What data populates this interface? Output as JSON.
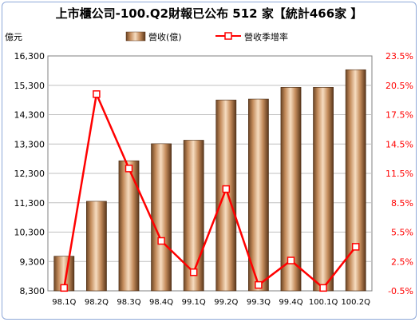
{
  "chart_data": {
    "type": "bar",
    "title": "上市櫃公司-100.Q2財報已公布 512 家【統計466家 】",
    "y_left_unit": "億元",
    "categories": [
      "98.1Q",
      "98.2Q",
      "98.3Q",
      "98.4Q",
      "99.1Q",
      "99.2Q",
      "99.3Q",
      "99.4Q",
      "100.1Q",
      "100.2Q"
    ],
    "series": [
      {
        "name": "營收(億)",
        "type": "bar",
        "axis": "left",
        "color": "#d9a77c",
        "values": [
          9480,
          11350,
          12730,
          13310,
          13430,
          14800,
          14830,
          15230,
          15230,
          15830
        ]
      },
      {
        "name": "營收季增率",
        "type": "line",
        "axis": "right",
        "color": "#ff0000",
        "values": [
          -0.2,
          19.6,
          12.0,
          4.6,
          1.4,
          9.9,
          0.1,
          2.6,
          -0.2,
          4.0
        ]
      }
    ],
    "y_left": {
      "min": 8300,
      "max": 16300,
      "ticks": [
        "16,300",
        "15,300",
        "14,300",
        "13,300",
        "12,300",
        "11,300",
        "10,300",
        "9,300",
        "8,300"
      ]
    },
    "y_right": {
      "min": -0.5,
      "max": 23.5,
      "ticks": [
        "23.5%",
        "20.5%",
        "17.5%",
        "14.5%",
        "11.5%",
        "8.5%",
        "5.5%",
        "2.5%",
        "-0.5%"
      ]
    },
    "grid": true,
    "legend": "top"
  }
}
